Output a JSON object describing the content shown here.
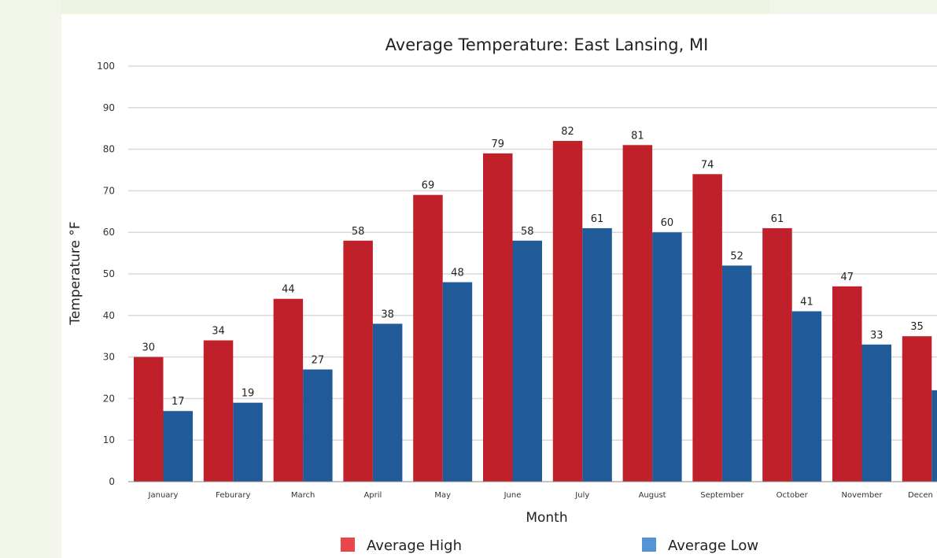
{
  "chart_data": {
    "type": "bar",
    "title": "Average Temperature: East Lansing, MI",
    "xlabel": "Month",
    "ylabel": "Temperature °F",
    "ylim": [
      0,
      100
    ],
    "yticks": [
      0,
      10,
      20,
      30,
      40,
      50,
      60,
      70,
      80,
      90,
      100
    ],
    "grid": true,
    "legend_position": "bottom",
    "categories": [
      "January",
      "Feburary",
      "March",
      "April",
      "May",
      "June",
      "July",
      "August",
      "September",
      "October",
      "November",
      "Decen"
    ],
    "series": [
      {
        "name": "Average High",
        "color": "#c0202a",
        "legend_color": "#e8474b",
        "values": [
          30,
          34,
          44,
          58,
          69,
          79,
          82,
          81,
          74,
          61,
          47,
          35
        ]
      },
      {
        "name": "Average Low",
        "color": "#205a98",
        "legend_color": "#5594d6",
        "values": [
          17,
          19,
          27,
          38,
          48,
          58,
          61,
          60,
          52,
          41,
          33,
          22
        ],
        "labels": [
          "17",
          "19",
          "27",
          "38",
          "48",
          "58",
          "61",
          "60",
          "52",
          "41",
          "33",
          ""
        ]
      }
    ]
  }
}
